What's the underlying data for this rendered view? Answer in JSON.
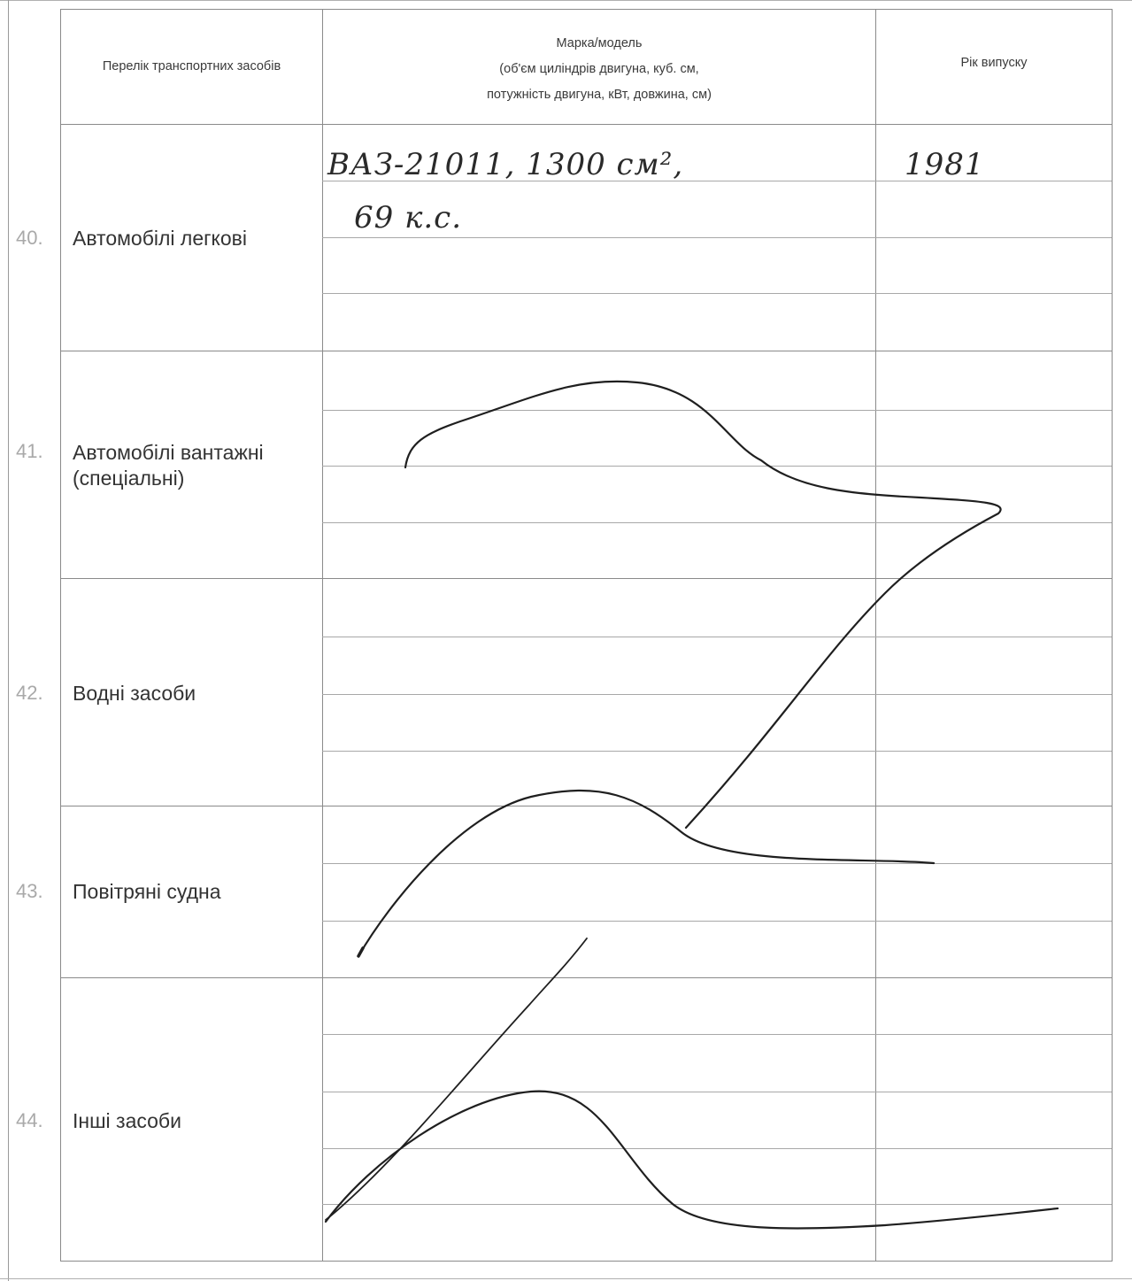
{
  "header": {
    "col_list": "Перелік транспортних засобів",
    "col_model_line1": "Марка/модель",
    "col_model_line2": "(об'єм циліндрів двигуна, куб. см,",
    "col_model_line3": "потужність двигуна, кВт, довжина, см)",
    "col_year": "Рік випуску"
  },
  "rows": [
    {
      "num": "40.",
      "name": "Автомобілі легкові"
    },
    {
      "num": "41.",
      "name": "Автомобілі вантажні\n(спеціальні)"
    },
    {
      "num": "42.",
      "name": "Водні засоби"
    },
    {
      "num": "43.",
      "name": "Повітряні судна"
    },
    {
      "num": "44.",
      "name": "Інші засоби"
    }
  ],
  "entries": {
    "car_model_line1": "ВАЗ-21011,  1300 см²,",
    "car_model_line2": "69 к.с.",
    "car_year": "1981"
  },
  "colors": {
    "grid": "#8a8a8a",
    "row_number": "#a9a9a9",
    "ink": "#2a2a2a"
  }
}
